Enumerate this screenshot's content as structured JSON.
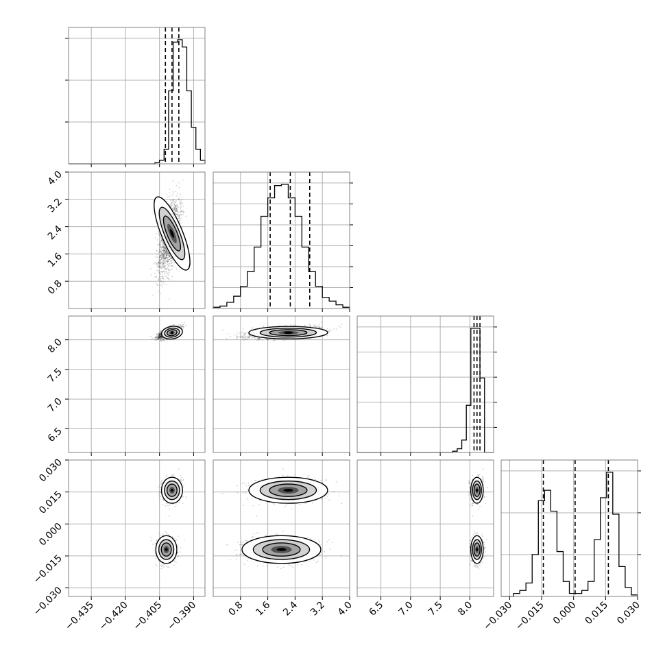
{
  "chart_data": {
    "type": "corner",
    "title": "",
    "parameters": [
      "",
      "",
      "",
      ""
    ],
    "grid": true,
    "quantile_lines": "dashed",
    "ranges": [
      [
        -0.445,
        -0.385
      ],
      [
        0.0,
        4.0
      ],
      [
        6.1,
        8.4
      ],
      [
        -0.034,
        0.03
      ]
    ],
    "ticks": [
      {
        "values": [
          -0.435,
          -0.42,
          -0.405,
          -0.39
        ],
        "labels": [
          "−0.435",
          "−0.420",
          "−0.405",
          "−0.390"
        ]
      },
      {
        "values": [
          0.8,
          1.6,
          2.4,
          3.2,
          4.0
        ],
        "labels": [
          "0.8",
          "1.6",
          "2.4",
          "3.2",
          "4.0"
        ]
      },
      {
        "values": [
          6.5,
          7.0,
          7.5,
          8.0
        ],
        "labels": [
          "6.5",
          "7.0",
          "7.5",
          "8.0"
        ]
      },
      {
        "values": [
          -0.03,
          -0.015,
          0.0,
          0.015,
          0.03
        ],
        "labels": [
          "−0.030",
          "−0.015",
          "0.000",
          "0.015",
          "0.030"
        ]
      }
    ],
    "diag_unlabeled_ticks": [
      3,
      6,
      5,
      3
    ],
    "quantiles": [
      [
        -0.4024,
        -0.3995,
        -0.3965
      ],
      [
        1.67,
        2.26,
        2.83
      ],
      [
        8.07,
        8.12,
        8.17
      ],
      [
        -0.0142,
        0.0007,
        0.0163
      ]
    ],
    "histograms": [
      {
        "x0": -0.445,
        "x1": -0.385,
        "counts": [
          0,
          0,
          0,
          0,
          0,
          0,
          0,
          0,
          0,
          0,
          0,
          0,
          0,
          0,
          0,
          0,
          0,
          0,
          0,
          0,
          0,
          0,
          0,
          0,
          0,
          0,
          0,
          0,
          0,
          0,
          0,
          0,
          0,
          0,
          0,
          0,
          0,
          0,
          0,
          0,
          0,
          0,
          0,
          0,
          0,
          0,
          0,
          0,
          0,
          0,
          0,
          0,
          0,
          0,
          0,
          0,
          0,
          0,
          0,
          0,
          0,
          0,
          0,
          0,
          0,
          0,
          0,
          0,
          0,
          0,
          0,
          0,
          0,
          0,
          0,
          0,
          0,
          0,
          0,
          0,
          0,
          0,
          0,
          0,
          0,
          0,
          0,
          0,
          0,
          0,
          0,
          0,
          0,
          0,
          0,
          0,
          0,
          0,
          0,
          0
        ]
      },
      {
        "x0": 0.0,
        "x1": 4.0,
        "counts": []
      },
      {
        "x0": 6.1,
        "x1": 8.4,
        "counts": []
      },
      {
        "x0": -0.034,
        "x1": 0.03,
        "counts": []
      }
    ],
    "hist_data": [
      {
        "x0": -0.445,
        "x1": -0.385,
        "counts": [
          0,
          0,
          0,
          0,
          0,
          0,
          0,
          0,
          0,
          0,
          0,
          0,
          0,
          0,
          0,
          0,
          0,
          0,
          0,
          1,
          3,
          12,
          60,
          100,
          102,
          96,
          60,
          30,
          12,
          3
        ]
      },
      {
        "x0": 0.0,
        "x1": 4.0,
        "counts": [
          1,
          2,
          5,
          10,
          18,
          30,
          50,
          75,
          90,
          100,
          101,
          90,
          75,
          50,
          30,
          18,
          9,
          6,
          3,
          1
        ]
      },
      {
        "x0": 6.1,
        "x1": 8.4,
        "counts": [
          0,
          0,
          0,
          0,
          0,
          0,
          0,
          0,
          0,
          0,
          0,
          0,
          0,
          0,
          0,
          0,
          0,
          0,
          0,
          0,
          0,
          1,
          3,
          10,
          38,
          100,
          100,
          60,
          0,
          0
        ]
      },
      {
        "x0": -0.034,
        "x1": 0.03,
        "counts": [
          0,
          0,
          2,
          4,
          9,
          28,
          64,
          71,
          57,
          30,
          10,
          2,
          2,
          4,
          10,
          38,
          66,
          83,
          55,
          20,
          6,
          1
        ]
      }
    ],
    "clusters": [
      {
        "mean": [
          -0.3995,
          2.2,
          8.12,
          0.0158
        ],
        "sd": [
          0.0022,
          0.55,
          0.05,
          0.0029
        ],
        "corr": [
          [
            0,
            1,
            0.55
          ],
          [
            0,
            2,
            0.8
          ],
          [
            1,
            2,
            0.05
          ]
        ]
      },
      {
        "mean": [
          -0.402,
          2.0,
          8.12,
          -0.012
        ],
        "sd": [
          0.0022,
          0.55,
          0.05,
          0.0031
        ],
        "corr": [
          [
            0,
            1,
            0.55
          ],
          [
            0,
            2,
            0.8
          ],
          [
            1,
            2,
            0.05
          ]
        ]
      }
    ]
  }
}
